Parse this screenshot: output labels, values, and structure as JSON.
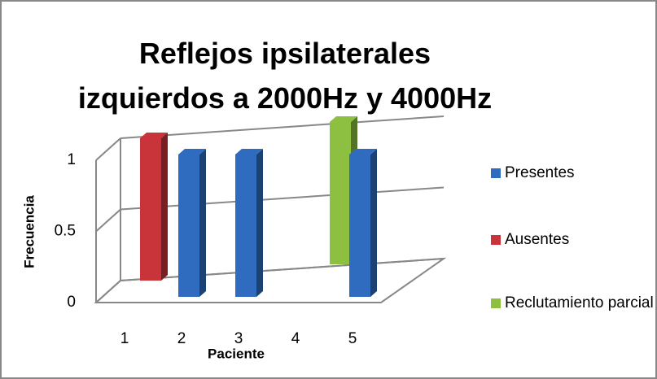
{
  "chart_data": {
    "type": "bar3d",
    "title": "Reflejos ipsilaterales izquierdos a 2000Hz y 4000Hz",
    "x_label": "Paciente",
    "y_label": "Frecuencia",
    "categories": [
      "1",
      "2",
      "3",
      "4",
      "5"
    ],
    "series": [
      {
        "name": "Presentes",
        "color": "#2f6cc0",
        "values": [
          null,
          1,
          1,
          null,
          1
        ]
      },
      {
        "name": "Ausentes",
        "color": "#c8343a",
        "values": [
          1,
          null,
          null,
          null,
          null
        ]
      },
      {
        "name": "Reclutamiento parcial",
        "color": "#8dc040",
        "values": [
          null,
          null,
          null,
          null,
          1
        ]
      }
    ],
    "ylim": [
      0,
      1
    ],
    "yticks": [
      0,
      0.5,
      1
    ],
    "grid": true,
    "legend": "right"
  }
}
